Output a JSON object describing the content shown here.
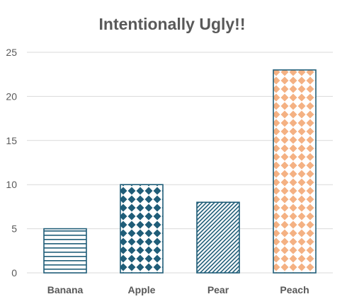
{
  "chart_data": {
    "type": "bar",
    "title": "Intentionally Ugly!!",
    "categories": [
      "Banana",
      "Apple",
      "Pear",
      "Peach"
    ],
    "values": [
      5,
      10,
      8,
      23
    ],
    "ylim": [
      0,
      25
    ],
    "yticks": [
      0,
      5,
      10,
      15,
      20,
      25
    ],
    "grid": true,
    "xlabel": "",
    "ylabel": "",
    "bar_styles": [
      {
        "pattern": "horizontal-stripes",
        "color": "#1F5D78"
      },
      {
        "pattern": "diamond-checks",
        "color": "#1F5D78"
      },
      {
        "pattern": "diagonal-stripes",
        "color": "#1F5D78"
      },
      {
        "pattern": "diamond-checks",
        "color": "#F4B183"
      }
    ],
    "outline_color": "#1F5D78",
    "grid_color": "#D9D9D9",
    "text_color": "#595959"
  }
}
